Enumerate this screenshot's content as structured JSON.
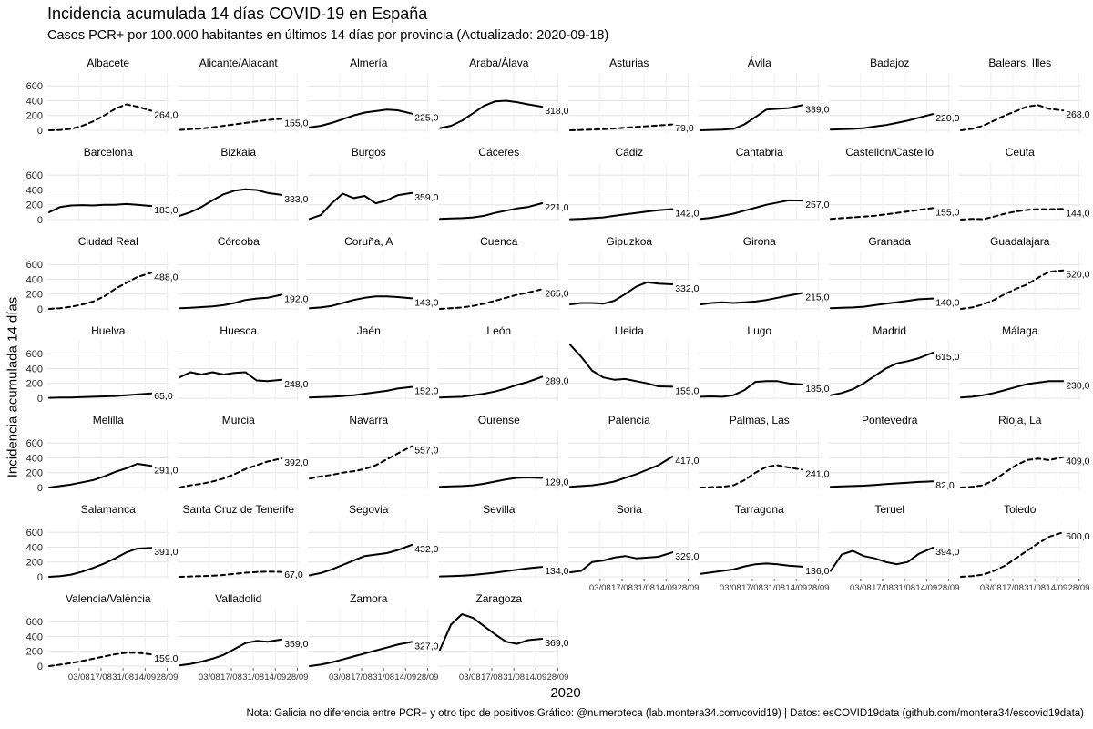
{
  "title": "Incidencia acumulada 14 días COVID-19 en España",
  "subtitle": "Casos PCR+ por 100.000 habitantes en últimos 14 días por provincia (Actualizado: 2020-09-18)",
  "caption": "Nota: Galicia no diferencia entre PCR+ y otro tipo de positivos.Gráfico: @numeroteca (lab.montera34.com/covid19) | Datos: esCOVID19data (github.com/montera34/escovid19data)",
  "chart_data": {
    "type": "line",
    "title": "Incidencia acumulada 14 días COVID-19 en España",
    "subtitle": "Casos PCR+ por 100.000 habitantes en últimos 14 días por provincia (Actualizado: 2020-09-18)",
    "xlabel": "2020",
    "ylabel": "Incidencia acumulada 14 días",
    "x_start": "2020-07-15",
    "x_end": "2020-09-28",
    "x_ticks": [
      "2020-08-03",
      "2020-08-17",
      "2020-08-31",
      "2020-09-14",
      "2020-09-28"
    ],
    "x_tick_labels": [
      "03/08",
      "17/08",
      "31/08",
      "14/09",
      "28/09"
    ],
    "ylim": [
      0,
      750
    ],
    "y_ticks": [
      0,
      200,
      400,
      600
    ],
    "y_tick_labels": [
      "0",
      "200",
      "400",
      "600"
    ],
    "grid": true,
    "x_dates": [
      "2020-07-15",
      "2020-07-22",
      "2020-07-29",
      "2020-08-05",
      "2020-08-12",
      "2020-08-19",
      "2020-08-26",
      "2020-09-02",
      "2020-09-09",
      "2020-09-18"
    ],
    "series": [
      {
        "name": "Albacete",
        "label": "264,0",
        "dashed": true,
        "values": [
          0,
          5,
          20,
          60,
          120,
          200,
          290,
          350,
          320,
          264
        ]
      },
      {
        "name": "Alicante/Alacant",
        "label": "155,0",
        "dashed": true,
        "values": [
          5,
          15,
          25,
          40,
          60,
          80,
          100,
          120,
          140,
          155
        ]
      },
      {
        "name": "Almería",
        "label": "225,0",
        "dashed": false,
        "values": [
          40,
          60,
          100,
          150,
          200,
          240,
          260,
          280,
          270,
          225
        ]
      },
      {
        "name": "Araba/Álava",
        "label": "318,0",
        "dashed": false,
        "values": [
          30,
          60,
          130,
          230,
          330,
          390,
          400,
          380,
          350,
          318
        ]
      },
      {
        "name": "Asturias",
        "label": "79,0",
        "dashed": true,
        "values": [
          0,
          5,
          10,
          15,
          25,
          35,
          45,
          55,
          65,
          79
        ]
      },
      {
        "name": "Ávila",
        "label": "339,0",
        "dashed": false,
        "values": [
          0,
          5,
          10,
          20,
          80,
          180,
          280,
          290,
          300,
          339
        ]
      },
      {
        "name": "Badajoz",
        "label": "220,0",
        "dashed": false,
        "values": [
          10,
          15,
          20,
          30,
          50,
          70,
          100,
          130,
          170,
          220
        ]
      },
      {
        "name": "Balears, Illes",
        "label": "268,0",
        "dashed": true,
        "values": [
          0,
          20,
          60,
          130,
          200,
          260,
          320,
          340,
          290,
          268
        ]
      },
      {
        "name": "Barcelona",
        "label": "183,0",
        "dashed": false,
        "values": [
          100,
          170,
          190,
          195,
          190,
          200,
          200,
          210,
          200,
          183
        ]
      },
      {
        "name": "Bizkaia",
        "label": "333,0",
        "dashed": false,
        "values": [
          50,
          100,
          170,
          260,
          340,
          390,
          410,
          400,
          360,
          333
        ]
      },
      {
        "name": "Burgos",
        "label": "359,0",
        "dashed": false,
        "values": [
          10,
          60,
          220,
          350,
          290,
          320,
          220,
          260,
          330,
          359
        ]
      },
      {
        "name": "Cáceres",
        "label": "221,0",
        "dashed": false,
        "values": [
          10,
          15,
          20,
          30,
          50,
          90,
          120,
          150,
          170,
          221
        ]
      },
      {
        "name": "Cádiz",
        "label": "142,0",
        "dashed": false,
        "values": [
          5,
          10,
          20,
          30,
          50,
          70,
          90,
          110,
          125,
          142
        ]
      },
      {
        "name": "Cantabria",
        "label": "257,0",
        "dashed": false,
        "values": [
          10,
          25,
          50,
          80,
          120,
          160,
          200,
          230,
          260,
          257
        ]
      },
      {
        "name": "Castellón/Castelló",
        "label": "155,0",
        "dashed": true,
        "values": [
          10,
          20,
          30,
          40,
          50,
          70,
          90,
          110,
          130,
          155
        ]
      },
      {
        "name": "Ceuta",
        "label": "144,0",
        "dashed": true,
        "values": [
          0,
          10,
          5,
          40,
          80,
          110,
          130,
          140,
          140,
          144
        ]
      },
      {
        "name": "Ciudad Real",
        "label": "488,0",
        "dashed": true,
        "values": [
          0,
          10,
          30,
          60,
          100,
          170,
          270,
          350,
          430,
          488
        ]
      },
      {
        "name": "Córdoba",
        "label": "192,0",
        "dashed": false,
        "values": [
          10,
          15,
          25,
          35,
          50,
          80,
          120,
          140,
          150,
          192
        ]
      },
      {
        "name": "Coruña, A",
        "label": "143,0",
        "dashed": false,
        "values": [
          10,
          20,
          40,
          80,
          120,
          150,
          170,
          170,
          160,
          143
        ]
      },
      {
        "name": "Cuenca",
        "label": "265,0",
        "dashed": true,
        "values": [
          0,
          10,
          20,
          40,
          70,
          110,
          150,
          190,
          220,
          265
        ]
      },
      {
        "name": "Gipuzkoa",
        "label": "332,0",
        "dashed": false,
        "values": [
          60,
          80,
          80,
          70,
          110,
          200,
          300,
          360,
          340,
          332
        ]
      },
      {
        "name": "Girona",
        "label": "215,0",
        "dashed": false,
        "values": [
          60,
          80,
          90,
          80,
          90,
          100,
          120,
          150,
          180,
          215
        ]
      },
      {
        "name": "Granada",
        "label": "140,0",
        "dashed": false,
        "values": [
          10,
          15,
          20,
          30,
          50,
          70,
          90,
          110,
          130,
          140
        ]
      },
      {
        "name": "Guadalajara",
        "label": "520,0",
        "dashed": true,
        "values": [
          0,
          20,
          60,
          120,
          200,
          270,
          330,
          420,
          500,
          520
        ]
      },
      {
        "name": "Huelva",
        "label": "65,0",
        "dashed": false,
        "values": [
          5,
          8,
          10,
          15,
          20,
          25,
          30,
          40,
          50,
          65
        ]
      },
      {
        "name": "Huesca",
        "label": "248,0",
        "dashed": false,
        "values": [
          280,
          350,
          320,
          350,
          320,
          340,
          350,
          240,
          230,
          248
        ]
      },
      {
        "name": "Jaén",
        "label": "152,0",
        "dashed": false,
        "values": [
          10,
          15,
          20,
          30,
          40,
          60,
          80,
          100,
          130,
          152
        ]
      },
      {
        "name": "León",
        "label": "289,0",
        "dashed": false,
        "values": [
          10,
          15,
          20,
          40,
          60,
          90,
          130,
          180,
          220,
          289
        ]
      },
      {
        "name": "Lleida",
        "label": "155,0",
        "dashed": false,
        "values": [
          720,
          560,
          370,
          280,
          250,
          260,
          230,
          200,
          160,
          155
        ]
      },
      {
        "name": "Lugo",
        "label": "185,0",
        "dashed": false,
        "values": [
          20,
          25,
          20,
          40,
          110,
          220,
          230,
          230,
          200,
          185
        ]
      },
      {
        "name": "Madrid",
        "label": "615,0",
        "dashed": false,
        "values": [
          40,
          70,
          120,
          200,
          300,
          400,
          470,
          500,
          540,
          615
        ]
      },
      {
        "name": "Málaga",
        "label": "230,0",
        "dashed": false,
        "values": [
          10,
          20,
          40,
          70,
          110,
          150,
          190,
          210,
          230,
          230
        ]
      },
      {
        "name": "Melilla",
        "label": "291,0",
        "dashed": false,
        "values": [
          0,
          20,
          40,
          70,
          100,
          150,
          210,
          260,
          320,
          291
        ]
      },
      {
        "name": "Murcia",
        "label": "392,0",
        "dashed": true,
        "values": [
          0,
          30,
          50,
          80,
          120,
          180,
          250,
          300,
          350,
          392
        ]
      },
      {
        "name": "Navarra",
        "label": "557,0",
        "dashed": true,
        "values": [
          120,
          150,
          170,
          200,
          220,
          250,
          300,
          380,
          460,
          557
        ]
      },
      {
        "name": "Ourense",
        "label": "129,0",
        "dashed": false,
        "values": [
          10,
          15,
          20,
          30,
          50,
          80,
          110,
          130,
          135,
          129
        ]
      },
      {
        "name": "Palencia",
        "label": "417,0",
        "dashed": false,
        "values": [
          10,
          20,
          30,
          50,
          80,
          130,
          180,
          240,
          300,
          417
        ]
      },
      {
        "name": "Palmas, Las",
        "label": "241,0",
        "dashed": true,
        "values": [
          0,
          5,
          10,
          30,
          100,
          200,
          280,
          300,
          270,
          241
        ]
      },
      {
        "name": "Pontevedra",
        "label": "82,0",
        "dashed": false,
        "values": [
          10,
          15,
          20,
          25,
          35,
          45,
          55,
          65,
          75,
          82
        ]
      },
      {
        "name": "Rioja, La",
        "label": "409,0",
        "dashed": true,
        "values": [
          0,
          10,
          30,
          100,
          200,
          300,
          370,
          390,
          370,
          409
        ]
      },
      {
        "name": "Salamanca",
        "label": "391,0",
        "dashed": false,
        "values": [
          0,
          10,
          30,
          70,
          120,
          180,
          250,
          330,
          380,
          391
        ]
      },
      {
        "name": "Santa Cruz de Tenerife",
        "label": "67,0",
        "dashed": true,
        "values": [
          0,
          5,
          10,
          15,
          25,
          40,
          55,
          65,
          70,
          67
        ]
      },
      {
        "name": "Segovia",
        "label": "432,0",
        "dashed": false,
        "values": [
          20,
          50,
          100,
          160,
          220,
          280,
          300,
          320,
          360,
          432
        ]
      },
      {
        "name": "Sevilla",
        "label": "134,0",
        "dashed": false,
        "values": [
          5,
          10,
          15,
          25,
          40,
          55,
          75,
          95,
          115,
          134
        ]
      },
      {
        "name": "Soria",
        "label": "329,0",
        "dashed": false,
        "values": [
          60,
          80,
          200,
          220,
          260,
          280,
          250,
          260,
          270,
          329
        ]
      },
      {
        "name": "Tarragona",
        "label": "136,0",
        "dashed": false,
        "values": [
          40,
          60,
          80,
          100,
          140,
          170,
          180,
          170,
          150,
          136
        ]
      },
      {
        "name": "Teruel",
        "label": "394,0",
        "dashed": false,
        "values": [
          80,
          300,
          350,
          280,
          250,
          200,
          170,
          200,
          310,
          394
        ]
      },
      {
        "name": "Toledo",
        "label": "600,0",
        "dashed": true,
        "values": [
          0,
          10,
          30,
          80,
          150,
          250,
          350,
          450,
          540,
          600
        ]
      },
      {
        "name": "Valencia/València",
        "label": "159,0",
        "dashed": true,
        "values": [
          0,
          20,
          40,
          70,
          100,
          130,
          160,
          180,
          180,
          159
        ]
      },
      {
        "name": "Valladolid",
        "label": "359,0",
        "dashed": false,
        "values": [
          10,
          30,
          60,
          100,
          150,
          230,
          310,
          340,
          330,
          359
        ]
      },
      {
        "name": "Zamora",
        "label": "327,0",
        "dashed": false,
        "values": [
          0,
          20,
          50,
          90,
          130,
          170,
          210,
          250,
          290,
          327
        ]
      },
      {
        "name": "Zaragoza",
        "label": "369,0",
        "dashed": false,
        "values": [
          220,
          560,
          700,
          650,
          540,
          430,
          330,
          300,
          350,
          369
        ]
      }
    ]
  }
}
